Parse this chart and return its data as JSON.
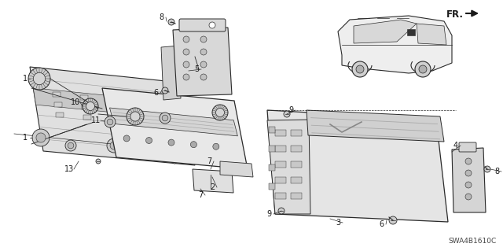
{
  "background_color": "#ffffff",
  "diagram_code": "SWA4B1610C",
  "fr_label": "FR.",
  "fig_width": 6.4,
  "fig_height": 3.19,
  "dpi": 100,
  "line_color": "#2a2a2a",
  "text_color": "#1a1a1a",
  "gray_fill": "#e8e8e8",
  "dark_gray": "#aaaaaa",
  "mid_gray": "#cccccc",
  "light_gray": "#f0f0f0"
}
